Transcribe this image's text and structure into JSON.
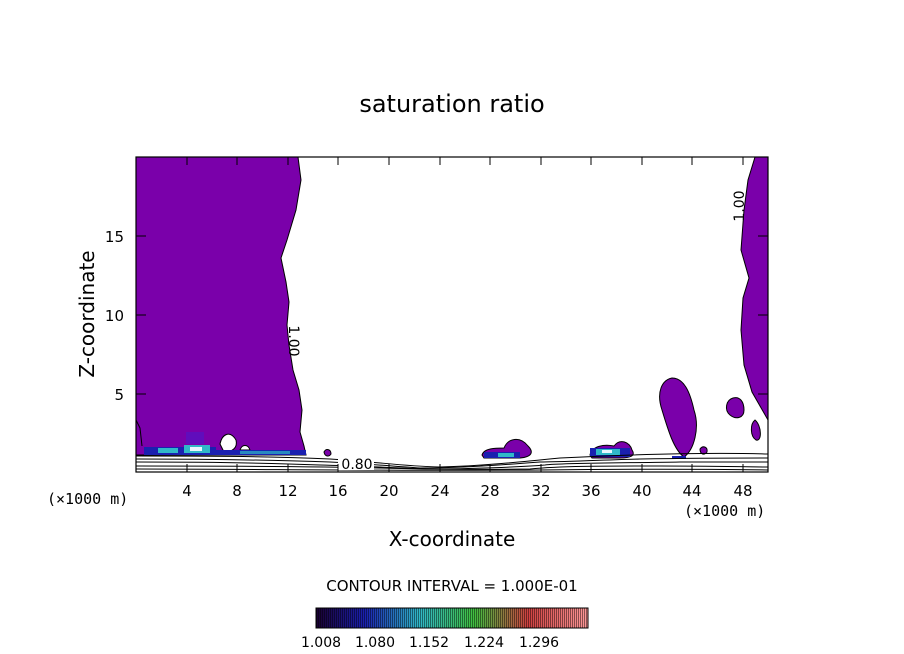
{
  "chart_data": {
    "type": "contour",
    "title": "saturation ratio",
    "xlabel": "X-coordinate",
    "ylabel": "Z-coordinate",
    "x_unit": "(×1000 m)",
    "z_unit": "(×1000 m)",
    "xlim": [
      0,
      50
    ],
    "ylim": [
      0,
      20
    ],
    "x_ticks": [
      4,
      8,
      12,
      16,
      20,
      24,
      28,
      32,
      36,
      40,
      44,
      48
    ],
    "x_tick_labels": [
      "4",
      "8",
      "12",
      "16",
      "20",
      "24",
      "28",
      "32",
      "36",
      "40",
      "44",
      "48"
    ],
    "y_ticks": [
      5,
      10,
      15
    ],
    "y_tick_labels": [
      "5",
      "10",
      "15"
    ],
    "contour_labels": [
      {
        "text": "1.00",
        "x": 12.0,
        "y": 8.5
      },
      {
        "text": "1.00",
        "x": 48.0,
        "y": 16.7
      },
      {
        "text": "0.80",
        "x": 17.5,
        "y": 0.55
      }
    ],
    "contour_interval_text": "CONTOUR INTERVAL = 1.000E-01",
    "colorbar": {
      "labels": [
        "1.008",
        "1.080",
        "1.152",
        "1.224",
        "1.296"
      ],
      "values": [
        1.008,
        1.08,
        1.152,
        1.224,
        1.296
      ],
      "colors": [
        "#20003a",
        "#2020c0",
        "#30c8d0",
        "#40c040",
        "#e04040",
        "#ff9090"
      ]
    },
    "fill_color": "#7a00aa",
    "supersaturated_regions": [
      {
        "x": [
          0,
          13.2
        ],
        "z": [
          0.9,
          20
        ]
      },
      {
        "x": [
          47,
          50
        ],
        "z": [
          4,
          20
        ]
      },
      {
        "x": [
          41.2,
          44.2
        ],
        "z": [
          0.9,
          5.9
        ]
      },
      {
        "x": [
          27.5,
          31
        ],
        "z": [
          0.9,
          2.3
        ]
      },
      {
        "x": [
          36,
          39.5
        ],
        "z": [
          0.9,
          2.2
        ]
      },
      {
        "x": [
          46.2,
          47.4
        ],
        "z": [
          3.2,
          4.8
        ]
      }
    ]
  }
}
